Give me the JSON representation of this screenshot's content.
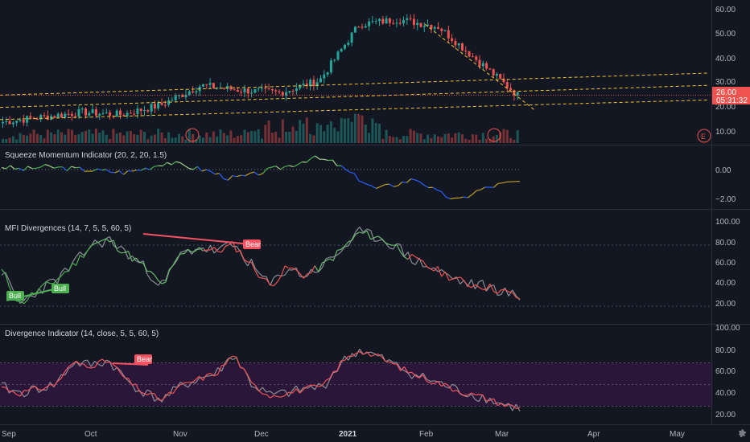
{
  "price_axis": {
    "ticks": [
      "60.00",
      "50.00",
      "40.00",
      "30.00",
      "20.00",
      "10.00"
    ],
    "last_price": "26.00",
    "countdown": "05:31:32",
    "earnings_marker": "E"
  },
  "panes": {
    "squeeze": {
      "title": "Squeeze Momentum Indicator (20, 2, 20, 1.5)",
      "ticks": [
        "0.00",
        "−2.00"
      ]
    },
    "mfi": {
      "title": "MFI Divergences (14, 7, 5, 5, 60, 5)",
      "ticks": [
        "100.00",
        "80.00",
        "60.00",
        "40.00",
        "20.00"
      ],
      "labels": {
        "bull_1": "Bull",
        "bull_2": "Bull",
        "bear_1": "Bear"
      }
    },
    "divergence": {
      "title": "Divergence Indicator (14, close, 5, 5, 60, 5)",
      "ticks": [
        "100.00",
        "80.00",
        "60.00",
        "40.00",
        "20.00"
      ],
      "labels": {
        "bear_1": "Bear"
      }
    }
  },
  "time_axis": {
    "labels": [
      "Sep",
      "Oct",
      "Nov",
      "Dec",
      "2021",
      "Feb",
      "Mar",
      "Apr",
      "May"
    ]
  },
  "colors": {
    "background": "#131722",
    "up": "#26a69a",
    "down": "#ef5350",
    "trend_line": "#f0c330",
    "bull": "#4caf50",
    "bear": "#f7525f",
    "band": "#2a1638"
  },
  "chart_data": [
    {
      "type": "candlestick",
      "name_note": "price pane",
      "x_range": [
        "Sep 2020",
        "May 2021"
      ],
      "ylim": [
        5,
        65
      ],
      "y_ticks": [
        10,
        20,
        30,
        40,
        50,
        60
      ],
      "last_price": 26.0,
      "anchors": [
        {
          "date": "Sep",
          "close": 15
        },
        {
          "date": "Oct",
          "close": 17
        },
        {
          "date": "Oct mid",
          "close": 19
        },
        {
          "date": "Nov",
          "close": 18
        },
        {
          "date": "Nov mid",
          "close": 22
        },
        {
          "date": "Dec",
          "close": 30
        },
        {
          "date": "Dec mid",
          "close": 28
        },
        {
          "date": "2021",
          "close": 27
        },
        {
          "date": "Jan mid",
          "close": 32
        },
        {
          "date": "Jan end",
          "close": 55
        },
        {
          "date": "Feb",
          "close": 57
        },
        {
          "date": "Feb mid",
          "close": 54
        },
        {
          "date": "Feb end",
          "close": 40
        },
        {
          "date": "Mar",
          "close": 26
        }
      ],
      "trend_lines": [
        {
          "from": [
            "Sep",
            26
          ],
          "to": [
            "May",
            35
          ]
        },
        {
          "from": [
            "Sep",
            21
          ],
          "to": [
            "May",
            30
          ]
        },
        {
          "from": [
            "Sep",
            16
          ],
          "to": [
            "May",
            24
          ]
        },
        {
          "from": [
            "Feb",
            55
          ],
          "to": [
            "Mar",
            20
          ]
        }
      ],
      "volume": "present",
      "earnings_markers": [
        "Nov",
        "Feb end",
        "May"
      ]
    },
    {
      "type": "line",
      "name_note": "Squeeze Momentum",
      "ylim": [
        -3,
        1.5
      ],
      "values": [
        0.2,
        0.0,
        0.2,
        0.1,
        0.0,
        -0.1,
        -0.2,
        0.1,
        0.5,
        0.2,
        -0.1,
        -0.6,
        -0.4,
        0.0,
        0.3,
        0.8,
        0.5,
        -0.4,
        -1.3,
        -1.0,
        -0.6,
        -1.5,
        -2.1,
        -1.4,
        -1.0,
        -0.8
      ]
    },
    {
      "type": "line",
      "name_note": "MFI Divergences",
      "ylim": [
        0,
        100
      ],
      "grid_lines": [
        80,
        20
      ],
      "values": [
        55,
        22,
        35,
        45,
        60,
        80,
        85,
        72,
        58,
        40,
        70,
        78,
        74,
        80,
        60,
        40,
        58,
        50,
        60,
        75,
        92,
        88,
        80,
        66,
        58,
        50,
        42,
        40,
        35,
        28
      ]
    },
    {
      "type": "line",
      "name_note": "Divergence Indicator (RSI)",
      "ylim": [
        10,
        100
      ],
      "band": [
        30,
        70
      ],
      "values": [
        48,
        42,
        46,
        50,
        70,
        68,
        72,
        54,
        42,
        36,
        48,
        55,
        60,
        78,
        50,
        40,
        42,
        46,
        48,
        70,
        82,
        76,
        68,
        60,
        54,
        48,
        42,
        38,
        32,
        28
      ]
    }
  ]
}
